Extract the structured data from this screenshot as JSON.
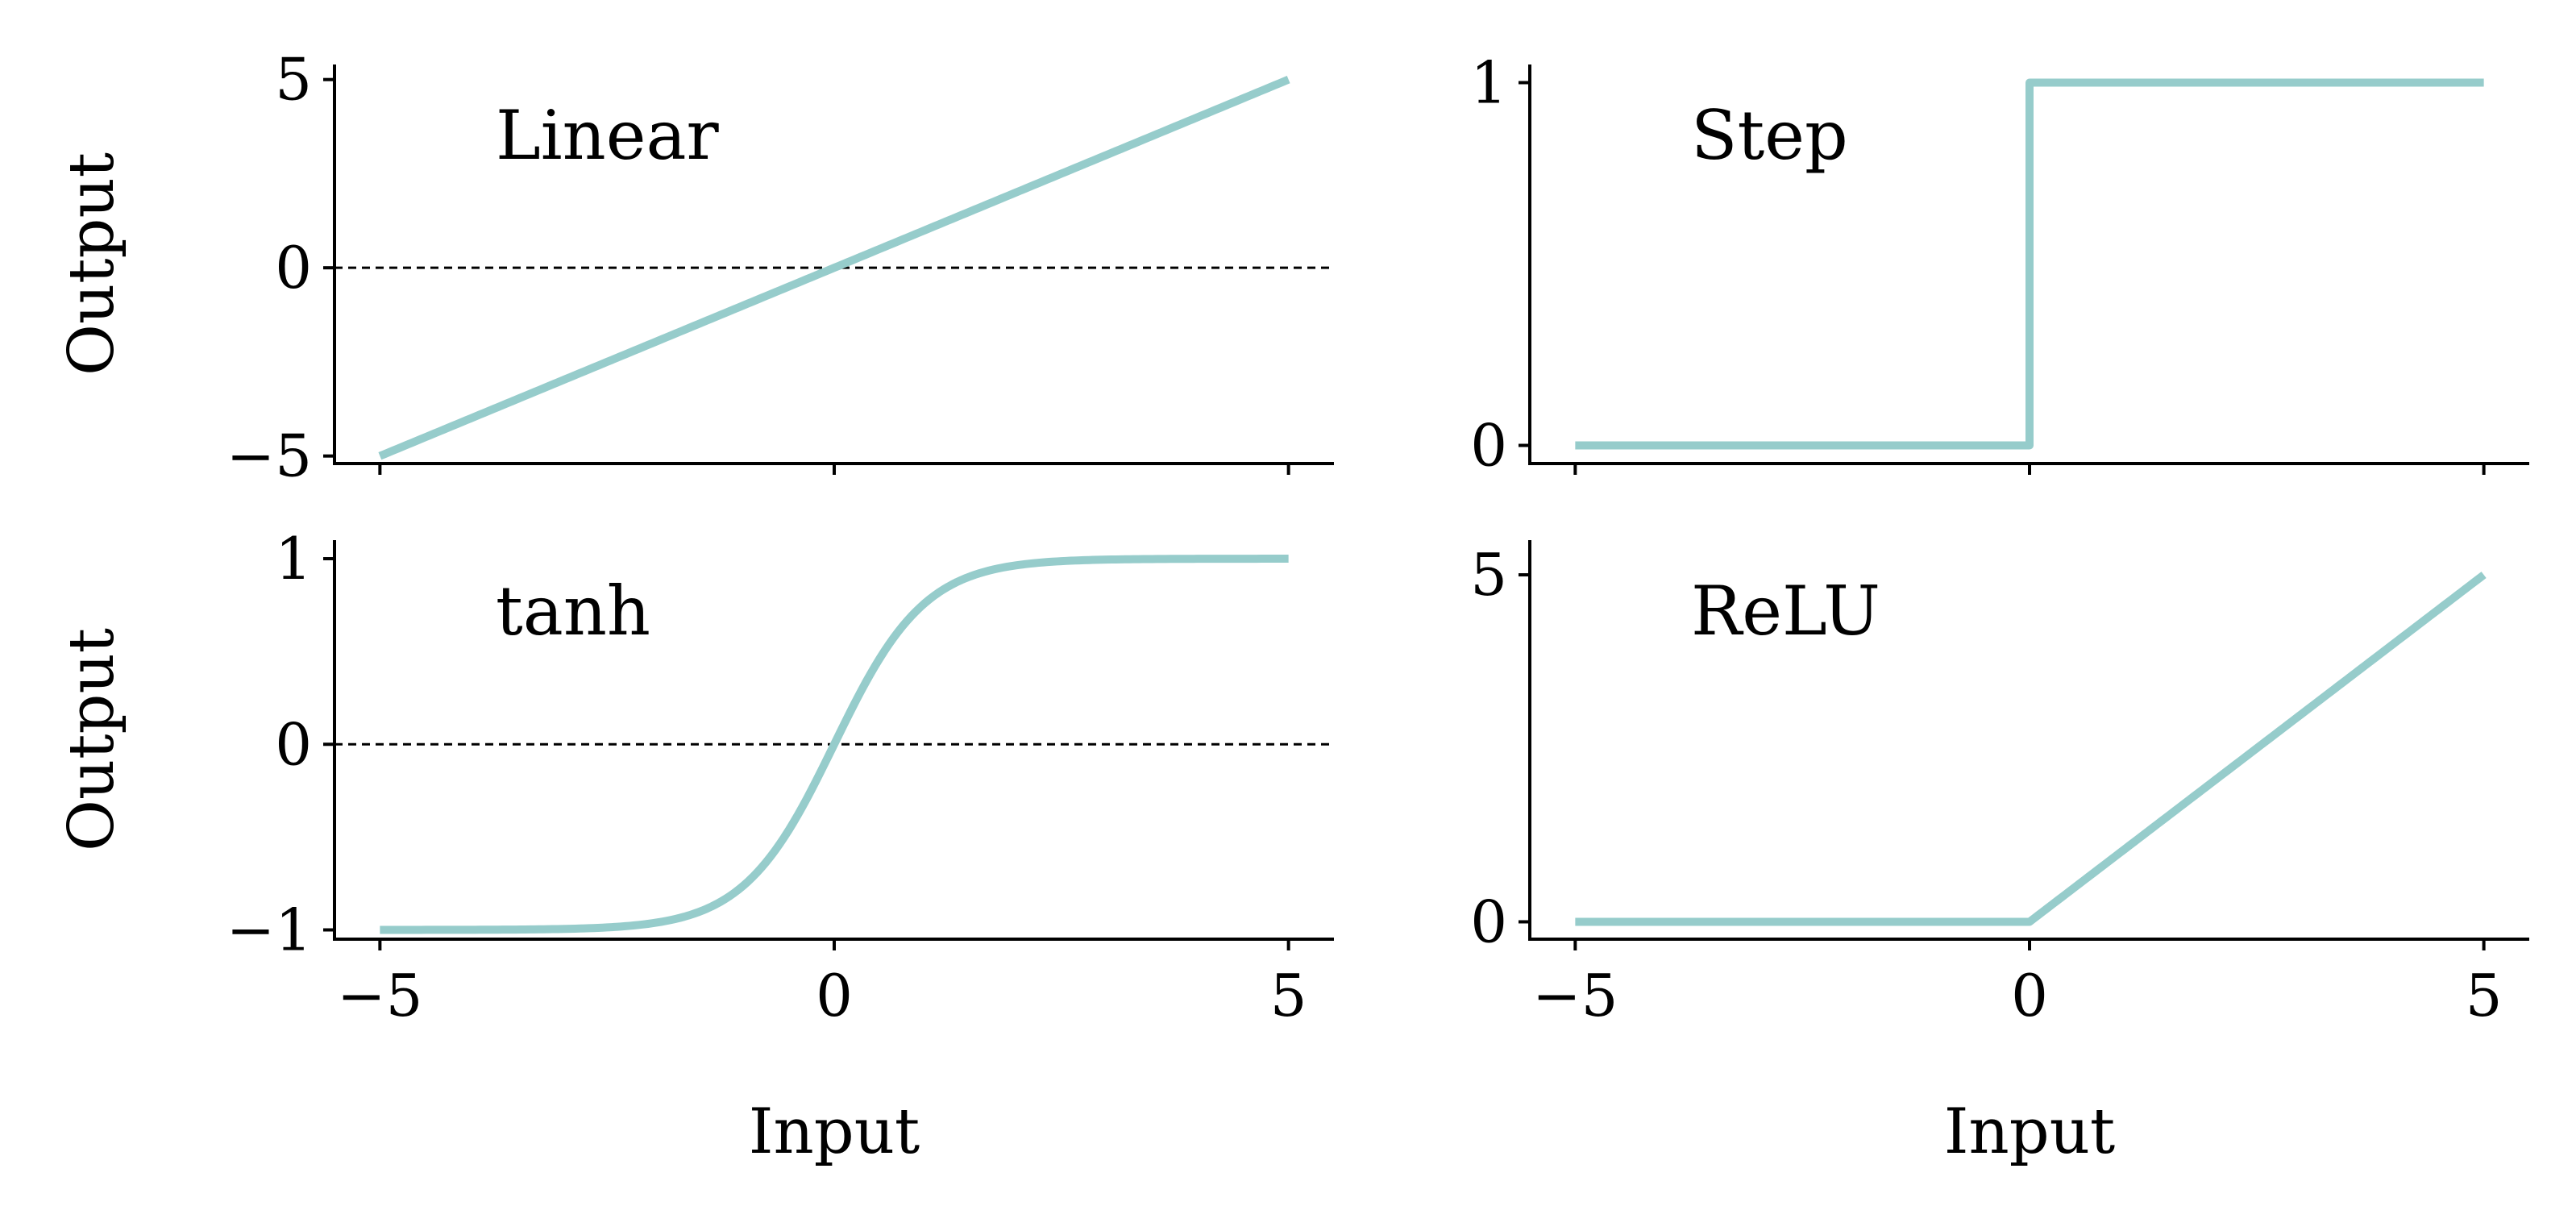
{
  "figure": {
    "curve_color": "#96cccb",
    "axis_color": "#000000",
    "zero_line_color": "#000000"
  },
  "chart_data": [
    {
      "type": "line",
      "title": "Linear",
      "xlabel": "",
      "ylabel": "Output",
      "xlim": [
        -5.5,
        5.5
      ],
      "ylim": [
        -5.2,
        5.4
      ],
      "xticks": [
        -5,
        0,
        5
      ],
      "yticks": [
        -5,
        0,
        5
      ],
      "ytick_labels": [
        "−5",
        "0",
        "5"
      ],
      "xtick_labels": [],
      "zero_line": true,
      "function": "linear",
      "x": [
        -5,
        0,
        5
      ],
      "y": [
        -5,
        0,
        5
      ]
    },
    {
      "type": "line",
      "title": "Step",
      "xlabel": "",
      "ylabel": "",
      "xlim": [
        -5.5,
        5.5
      ],
      "ylim": [
        -0.05,
        1.05
      ],
      "xticks": [
        -5,
        0,
        5
      ],
      "yticks": [
        0,
        1
      ],
      "ytick_labels": [
        "0",
        "1"
      ],
      "xtick_labels": [],
      "zero_line": false,
      "function": "step",
      "x": [
        -5,
        0,
        0,
        5
      ],
      "y": [
        0,
        0,
        1,
        1
      ]
    },
    {
      "type": "line",
      "title": "tanh",
      "xlabel": "Input",
      "ylabel": "Output",
      "xlim": [
        -5.5,
        5.5
      ],
      "ylim": [
        -1.05,
        1.1
      ],
      "xticks": [
        -5,
        0,
        5
      ],
      "yticks": [
        -1,
        0,
        1
      ],
      "ytick_labels": [
        "−1",
        "0",
        "1"
      ],
      "xtick_labels": [
        "−5",
        "0",
        "5"
      ],
      "zero_line": true,
      "function": "tanh",
      "x": [
        -5,
        -2,
        -1,
        0,
        1,
        2,
        5
      ],
      "y": [
        -1,
        -0.96,
        -0.76,
        0,
        0.76,
        0.96,
        1
      ]
    },
    {
      "type": "line",
      "title": "ReLU",
      "xlabel": "Input",
      "ylabel": "",
      "xlim": [
        -5.5,
        5.5
      ],
      "ylim": [
        -0.25,
        5.5
      ],
      "xticks": [
        -5,
        0,
        5
      ],
      "yticks": [
        0,
        5
      ],
      "ytick_labels": [
        "0",
        "5"
      ],
      "xtick_labels": [
        "−5",
        "0",
        "5"
      ],
      "zero_line": false,
      "function": "relu",
      "x": [
        -5,
        0,
        5
      ],
      "y": [
        0,
        0,
        5
      ]
    }
  ]
}
